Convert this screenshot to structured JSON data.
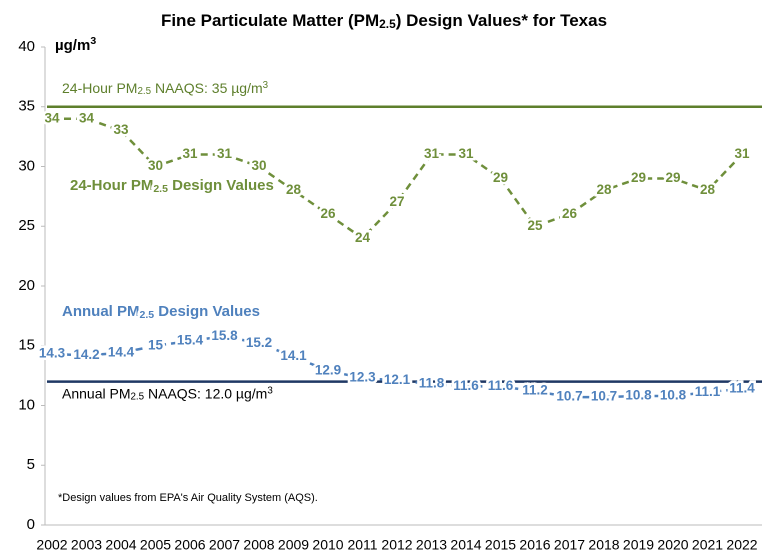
{
  "chart_data": {
    "type": "line",
    "title": [
      "Fine Particulate Matter (PM",
      "2.5",
      ") Design Values* for Texas"
    ],
    "y_label": [
      "µg/m",
      "3"
    ],
    "categories": [
      "2002",
      "2003",
      "2004",
      "2005",
      "2006",
      "2007",
      "2008",
      "2009",
      "2010",
      "2011",
      "2012",
      "2013",
      "2014",
      "2015",
      "2016",
      "2017",
      "2018",
      "2019",
      "2020",
      "2021",
      "2022"
    ],
    "ylim": [
      0,
      40
    ],
    "yticks": [
      0,
      5,
      10,
      15,
      20,
      25,
      30,
      35,
      40
    ],
    "grid": false,
    "series": [
      {
        "name": [
          "24-Hour PM",
          "2.5",
          " Design Values"
        ],
        "color": "#6f8f3b",
        "values": [
          34,
          34,
          33,
          30,
          31,
          31,
          30,
          28,
          26,
          24,
          27,
          31,
          31,
          29,
          25,
          26,
          28,
          29,
          29,
          28,
          31
        ]
      },
      {
        "name": [
          "Annual PM",
          "2.5",
          " Design Values"
        ],
        "color": "#4f81bd",
        "values": [
          14.3,
          14.2,
          14.4,
          15,
          15.4,
          15.8,
          15.2,
          14.1,
          12.9,
          12.3,
          12.1,
          11.8,
          11.6,
          11.6,
          11.2,
          10.7,
          10.7,
          10.8,
          10.8,
          11.1,
          11.4
        ]
      }
    ],
    "reference_lines": [
      {
        "value": 35,
        "color": "#5e7f2c",
        "label": [
          "24-Hour PM",
          "2.5",
          " NAAQS: 35 µg/m",
          "3"
        ]
      },
      {
        "value": 12,
        "color": "#1f3864",
        "label": [
          "Annual PM",
          "2.5",
          " NAAQS: 12.0 µg/m",
          "3"
        ]
      }
    ],
    "footnote": "*Design values from EPA's Air Quality System (AQS)."
  }
}
